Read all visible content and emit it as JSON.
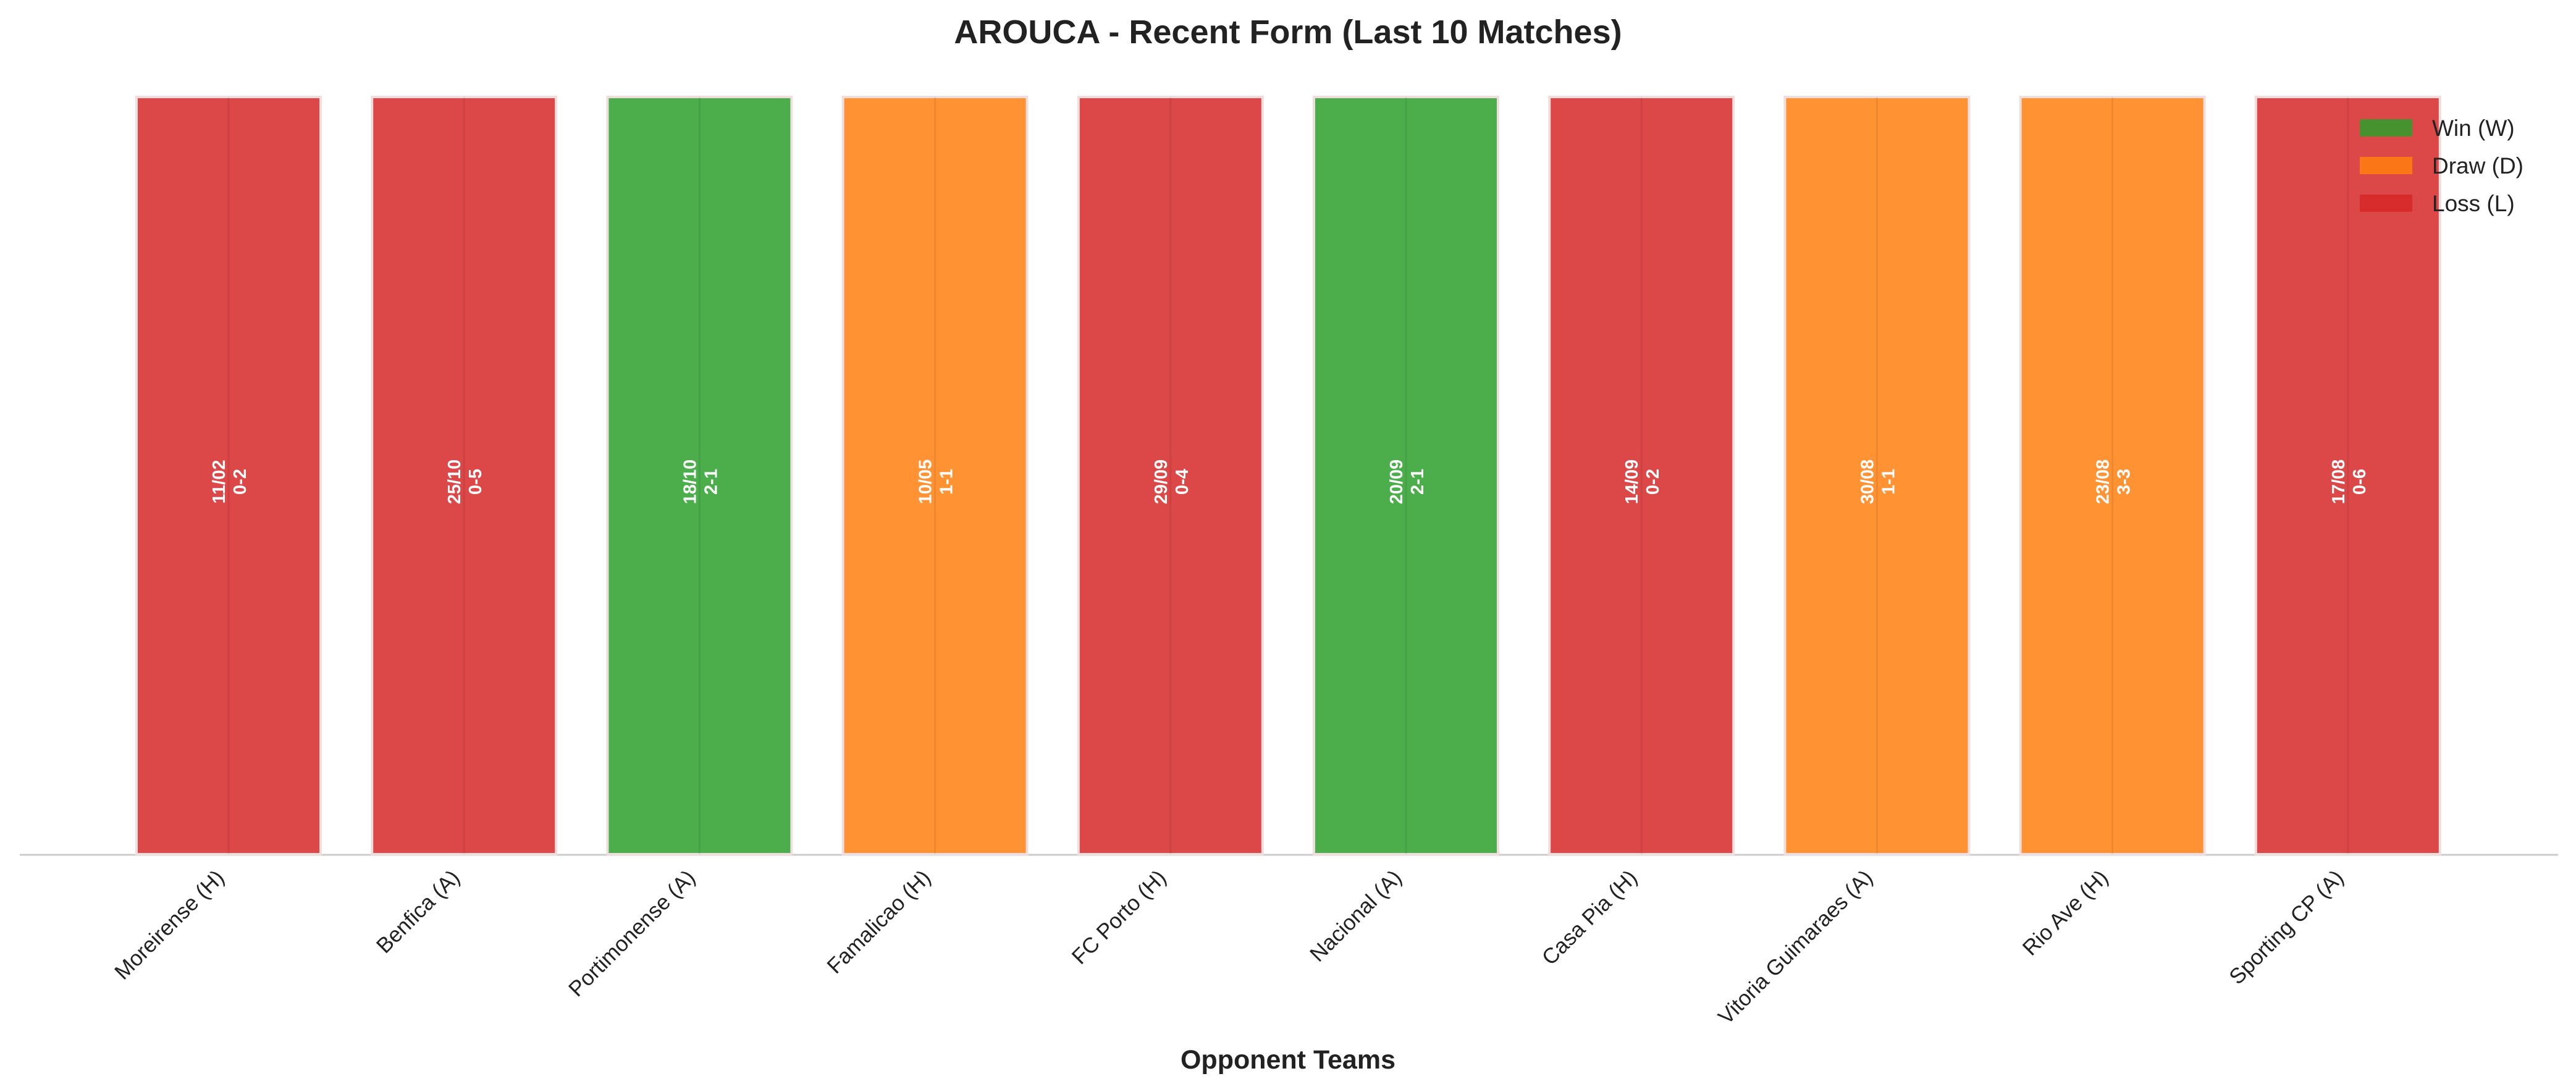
{
  "chart_data": {
    "type": "bar",
    "title": "AROUCA - Recent Form (Last 10 Matches)",
    "x_label": "Opponent Teams",
    "categories": [
      "Moreirense (H)",
      "Benfica (A)",
      "Portimonense (A)",
      "Famalicao (H)",
      "FC Porto (H)",
      "Nacional (A)",
      "Casa Pia (H)",
      "Vitoria Guimaraes (A)",
      "Rio Ave (H)",
      "Sporting CP (A)"
    ],
    "values": [
      1,
      1,
      1,
      1,
      1,
      1,
      1,
      1,
      1,
      1
    ],
    "ylim": [
      0,
      1
    ],
    "dates": [
      "11/02",
      "25/10",
      "18/10",
      "10/05",
      "29/09",
      "20/09",
      "14/09",
      "30/08",
      "23/08",
      "17/08"
    ],
    "scores": [
      "0-2",
      "0-5",
      "2-1",
      "1-1",
      "0-4",
      "2-1",
      "0-2",
      "1-1",
      "3-3",
      "0-6"
    ],
    "colors": [
      "#d62728",
      "#d62728",
      "#2ca02c",
      "#ff7f0e",
      "#d62728",
      "#2ca02c",
      "#d62728",
      "#ff7f0e",
      "#ff7f0e",
      "#d62728"
    ],
    "legend": [
      {
        "name": "Win (W)",
        "color": "#2ca02c"
      },
      {
        "name": "Draw (D)",
        "color": "#ff7f0e"
      },
      {
        "name": "Loss (L)",
        "color": "#d62728"
      }
    ],
    "legend_position": "upper right",
    "grid": true
  }
}
